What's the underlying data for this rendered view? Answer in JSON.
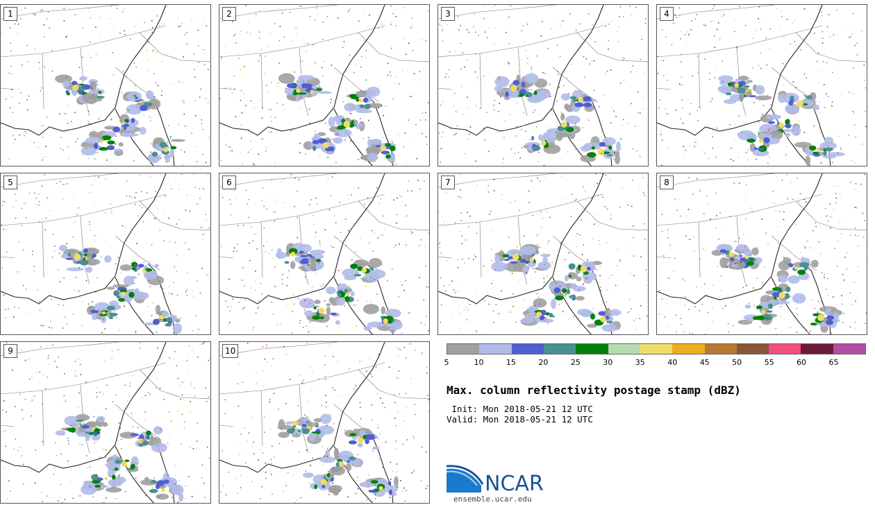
{
  "panels": [
    {
      "label": "1"
    },
    {
      "label": "2"
    },
    {
      "label": "3"
    },
    {
      "label": "4"
    },
    {
      "label": "5"
    },
    {
      "label": "6"
    },
    {
      "label": "7"
    },
    {
      "label": "8"
    },
    {
      "label": "9"
    },
    {
      "label": "10"
    }
  ],
  "colorbar": {
    "colors": [
      "#a0a0a0",
      "#b0bbe8",
      "#505ed4",
      "#4a9090",
      "#00820a",
      "#b6dab0",
      "#f0dc64",
      "#eeae1e",
      "#b47a32",
      "#8a5638",
      "#f0507a",
      "#6a1a3a",
      "#b04ea4"
    ],
    "ticks": [
      "5",
      "10",
      "15",
      "20",
      "25",
      "30",
      "35",
      "40",
      "45",
      "50",
      "55",
      "60",
      "65"
    ]
  },
  "title": "Max. column reflectivity postage stamp (dBZ)",
  "init": " Init: Mon 2018-05-21 12 UTC",
  "valid": "Valid: Mon 2018-05-21 12 UTC",
  "logo": {
    "text": "NCAR",
    "site": "ensemble.ucar.edu",
    "accent": "#1a5296"
  }
}
